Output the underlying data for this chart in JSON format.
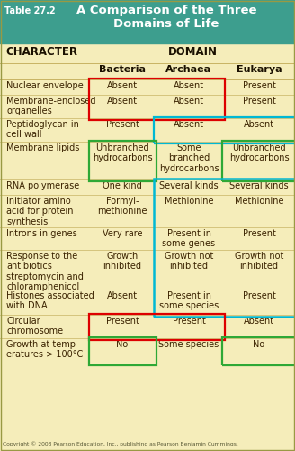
{
  "title_label": "Table 27.2",
  "title_text": "A Comparison of the Three\nDomains of Life",
  "header_bg": "#3d9e8e",
  "table_bg": "#f5edba",
  "text_color": "#3a2200",
  "bold_color": "#1a1000",
  "copyright": "Copyright © 2008 Pearson Education, Inc., publishing as Pearson Benjamin Cummings.",
  "rows": [
    {
      "character": "Nuclear envelope",
      "bacteria": "Absent",
      "archaea": "Absent",
      "eukarya": "Present"
    },
    {
      "character": "Membrane-enclosed\norganelles",
      "bacteria": "Absent",
      "archaea": "Absent",
      "eukarya": "Present"
    },
    {
      "character": "Peptidoglycan in\ncell wall",
      "bacteria": "Present",
      "archaea": "Absent",
      "eukarya": "Absent"
    },
    {
      "character": "Membrane lipids",
      "bacteria": "Unbranched\nhydrocarbons",
      "archaea": "Some\nbranched\nhydrocarbons",
      "eukarya": "Unbranched\nhydrocarbons"
    },
    {
      "character": "RNA polymerase",
      "bacteria": "One kind",
      "archaea": "Several kinds",
      "eukarya": "Several kinds"
    },
    {
      "character": "Initiator amino\nacid for protein\nsynthesis",
      "bacteria": "Formyl-\nmethionine",
      "archaea": "Methionine",
      "eukarya": "Methionine"
    },
    {
      "character": "Introns in genes",
      "bacteria": "Very rare",
      "archaea": "Present in\nsome genes",
      "eukarya": "Present"
    },
    {
      "character": "Response to the\nantibiotics\nstreptomycin and\nchloramphenicol",
      "bacteria": "Growth\ninhibited",
      "archaea": "Growth not\ninhibited",
      "eukarya": "Growth not\ninhibited"
    },
    {
      "character": "Histones associated\nwith DNA",
      "bacteria": "Absent",
      "archaea": "Present in\nsome species",
      "eukarya": "Present"
    },
    {
      "character": "Circular\nchromosome",
      "bacteria": "Present",
      "archaea": "Present",
      "eukarya": "Absent"
    },
    {
      "character": "Growth at temp-\neratures > 100°C",
      "bacteria": "No",
      "archaea": "Some species",
      "eukarya": "No"
    }
  ]
}
